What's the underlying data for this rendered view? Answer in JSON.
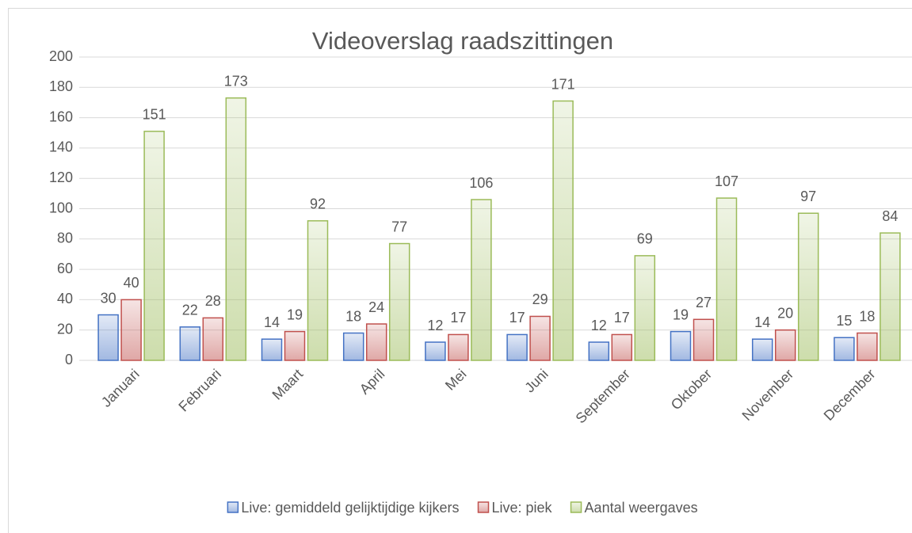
{
  "chart_data": {
    "type": "bar",
    "title": "Videoverslag raadszittingen",
    "categories": [
      "Januari",
      "Februari",
      "Maart",
      "April",
      "Mei",
      "Juni",
      "September",
      "Oktober",
      "November",
      "December"
    ],
    "series": [
      {
        "name": "Live: gemiddeld gelijktijdige kijkers",
        "color": "#4472c4",
        "values": [
          30,
          22,
          14,
          18,
          12,
          17,
          12,
          19,
          14,
          15
        ]
      },
      {
        "name": "Live: piek",
        "color": "#c0504d",
        "values": [
          40,
          28,
          19,
          24,
          17,
          29,
          17,
          27,
          20,
          18
        ]
      },
      {
        "name": "Aantal weergaves",
        "color": "#9bbb59",
        "values": [
          151,
          173,
          92,
          77,
          106,
          171,
          69,
          107,
          97,
          84
        ]
      }
    ],
    "ylim": [
      0,
      200
    ],
    "yticks": [
      0,
      20,
      40,
      60,
      80,
      100,
      120,
      140,
      160,
      180,
      200
    ],
    "grid": true,
    "legend": "bottom",
    "data_labels": true
  }
}
